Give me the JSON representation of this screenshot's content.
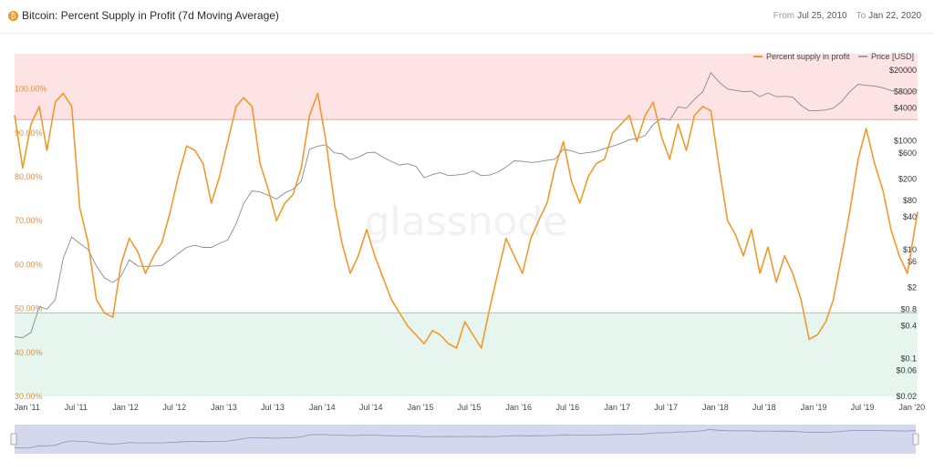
{
  "header": {
    "logo_glyph": "₿",
    "title": "Bitcoin: Percent Supply in Profit (7d Moving Average)",
    "from_label": "From",
    "from_value": "Jul 25, 2010",
    "to_label": "To",
    "to_value": "Jan 22, 2020"
  },
  "watermark": "glassnode",
  "colors": {
    "profit_line": "#f2992e",
    "price_line": "#8a8a8a",
    "upper_zone": "#fde3e3",
    "upper_line": "#f4a3a3",
    "lower_zone": "#e6f6ee",
    "lower_line": "#8fd3b0",
    "navigator_fill": "#d3d8ec"
  },
  "chart_data": {
    "type": "line",
    "x_range": [
      "2010-11-15",
      "2020-01-22"
    ],
    "x_ticks": [
      "Jan '11",
      "Jul '11",
      "Jan '12",
      "Jul '12",
      "Jan '13",
      "Jul '13",
      "Jan '14",
      "Jul '14",
      "Jan '15",
      "Jul '15",
      "Jan '16",
      "Jul '16",
      "Jan '17",
      "Jul '17",
      "Jan '18",
      "Jul '18",
      "Jan '19",
      "Jul '19",
      "Jan '20"
    ],
    "left_axis": {
      "ticks": [
        "100.00%",
        "90.00%",
        "80.00%",
        "70.00%",
        "60.00%",
        "50.00%",
        "40.00%",
        "30.00%"
      ],
      "ylim": [
        30,
        108
      ]
    },
    "right_axis": {
      "scale": "log",
      "ticks": [
        "$20000",
        "$8000",
        "$4000",
        "$1000",
        "$600",
        "$200",
        "$80",
        "$40",
        "$10",
        "$6",
        "$2",
        "$0.8",
        "$0.4",
        "$0.1",
        "$0.06",
        "$0.02"
      ],
      "ylim": [
        0.02,
        40000
      ]
    },
    "zones": [
      {
        "name": "upper",
        "from": 93,
        "to": 108
      },
      {
        "name": "lower",
        "from": 30,
        "to": 49
      }
    ],
    "legend_position": "top-right",
    "series": [
      {
        "name": "Percent supply in profit",
        "axis": "left",
        "points": [
          [
            "2010-11-15",
            94
          ],
          [
            "2010-12-15",
            82
          ],
          [
            "2011-01-15",
            92
          ],
          [
            "2011-02-15",
            96
          ],
          [
            "2011-03-15",
            86
          ],
          [
            "2011-04-15",
            97
          ],
          [
            "2011-05-15",
            99
          ],
          [
            "2011-06-15",
            96
          ],
          [
            "2011-07-15",
            73
          ],
          [
            "2011-08-15",
            65
          ],
          [
            "2011-09-15",
            52
          ],
          [
            "2011-10-15",
            49
          ],
          [
            "2011-11-15",
            48
          ],
          [
            "2011-12-15",
            60
          ],
          [
            "2012-01-15",
            66
          ],
          [
            "2012-02-15",
            63
          ],
          [
            "2012-03-15",
            58
          ],
          [
            "2012-04-15",
            62
          ],
          [
            "2012-05-15",
            65
          ],
          [
            "2012-06-15",
            72
          ],
          [
            "2012-07-15",
            80
          ],
          [
            "2012-08-15",
            87
          ],
          [
            "2012-09-15",
            86
          ],
          [
            "2012-10-15",
            83
          ],
          [
            "2012-11-15",
            74
          ],
          [
            "2012-12-15",
            80
          ],
          [
            "2013-01-15",
            88
          ],
          [
            "2013-02-15",
            96
          ],
          [
            "2013-03-15",
            98
          ],
          [
            "2013-04-15",
            96
          ],
          [
            "2013-05-15",
            83
          ],
          [
            "2013-06-15",
            77
          ],
          [
            "2013-07-15",
            70
          ],
          [
            "2013-08-15",
            74
          ],
          [
            "2013-09-15",
            76
          ],
          [
            "2013-10-15",
            82
          ],
          [
            "2013-11-15",
            94
          ],
          [
            "2013-12-15",
            99
          ],
          [
            "2014-01-15",
            88
          ],
          [
            "2014-02-15",
            74
          ],
          [
            "2014-03-15",
            65
          ],
          [
            "2014-04-15",
            58
          ],
          [
            "2014-05-15",
            62
          ],
          [
            "2014-06-15",
            68
          ],
          [
            "2014-07-15",
            62
          ],
          [
            "2014-08-15",
            57
          ],
          [
            "2014-09-15",
            52
          ],
          [
            "2014-10-15",
            49
          ],
          [
            "2014-11-15",
            46
          ],
          [
            "2014-12-15",
            44
          ],
          [
            "2015-01-15",
            42
          ],
          [
            "2015-02-15",
            45
          ],
          [
            "2015-03-15",
            44
          ],
          [
            "2015-04-15",
            42
          ],
          [
            "2015-05-15",
            41
          ],
          [
            "2015-06-15",
            47
          ],
          [
            "2015-07-15",
            44
          ],
          [
            "2015-08-15",
            41
          ],
          [
            "2015-09-15",
            50
          ],
          [
            "2015-10-15",
            58
          ],
          [
            "2015-11-15",
            66
          ],
          [
            "2015-12-15",
            62
          ],
          [
            "2016-01-15",
            58
          ],
          [
            "2016-02-15",
            66
          ],
          [
            "2016-03-15",
            70
          ],
          [
            "2016-04-15",
            74
          ],
          [
            "2016-05-15",
            82
          ],
          [
            "2016-06-15",
            88
          ],
          [
            "2016-07-15",
            79
          ],
          [
            "2016-08-15",
            74
          ],
          [
            "2016-09-15",
            80
          ],
          [
            "2016-10-15",
            83
          ],
          [
            "2016-11-15",
            84
          ],
          [
            "2016-12-15",
            90
          ],
          [
            "2017-01-15",
            92
          ],
          [
            "2017-02-15",
            94
          ],
          [
            "2017-03-15",
            88
          ],
          [
            "2017-04-15",
            94
          ],
          [
            "2017-05-15",
            97
          ],
          [
            "2017-06-15",
            89
          ],
          [
            "2017-07-15",
            84
          ],
          [
            "2017-08-15",
            92
          ],
          [
            "2017-09-15",
            86
          ],
          [
            "2017-10-15",
            94
          ],
          [
            "2017-11-15",
            96
          ],
          [
            "2017-12-15",
            95
          ],
          [
            "2018-01-15",
            82
          ],
          [
            "2018-02-15",
            70
          ],
          [
            "2018-03-15",
            67
          ],
          [
            "2018-04-15",
            62
          ],
          [
            "2018-05-15",
            68
          ],
          [
            "2018-06-15",
            58
          ],
          [
            "2018-07-15",
            64
          ],
          [
            "2018-08-15",
            56
          ],
          [
            "2018-09-15",
            62
          ],
          [
            "2018-10-15",
            58
          ],
          [
            "2018-11-15",
            52
          ],
          [
            "2018-12-15",
            43
          ],
          [
            "2019-01-15",
            44
          ],
          [
            "2019-02-15",
            47
          ],
          [
            "2019-03-15",
            52
          ],
          [
            "2019-04-15",
            62
          ],
          [
            "2019-05-15",
            72
          ],
          [
            "2019-06-15",
            84
          ],
          [
            "2019-07-15",
            91
          ],
          [
            "2019-08-15",
            83
          ],
          [
            "2019-09-15",
            77
          ],
          [
            "2019-10-15",
            68
          ],
          [
            "2019-11-15",
            62
          ],
          [
            "2019-12-15",
            58
          ],
          [
            "2020-01-22",
            72
          ]
        ]
      },
      {
        "name": "Price [USD]",
        "axis": "right",
        "points": [
          [
            "2010-11-15",
            0.25
          ],
          [
            "2010-12-15",
            0.24
          ],
          [
            "2011-01-15",
            0.3
          ],
          [
            "2011-02-15",
            0.9
          ],
          [
            "2011-03-15",
            0.8
          ],
          [
            "2011-04-15",
            1.2
          ],
          [
            "2011-05-15",
            7
          ],
          [
            "2011-06-15",
            17
          ],
          [
            "2011-07-15",
            13
          ],
          [
            "2011-08-15",
            10
          ],
          [
            "2011-09-15",
            5
          ],
          [
            "2011-10-15",
            3
          ],
          [
            "2011-11-15",
            2.5
          ],
          [
            "2011-12-15",
            3.2
          ],
          [
            "2012-01-15",
            6.5
          ],
          [
            "2012-02-15",
            5
          ],
          [
            "2012-03-15",
            4.9
          ],
          [
            "2012-04-15",
            5
          ],
          [
            "2012-05-15",
            5.1
          ],
          [
            "2012-06-15",
            6.5
          ],
          [
            "2012-07-15",
            8.5
          ],
          [
            "2012-08-15",
            11
          ],
          [
            "2012-09-15",
            12
          ],
          [
            "2012-10-15",
            11
          ],
          [
            "2012-11-15",
            11
          ],
          [
            "2012-12-15",
            13
          ],
          [
            "2013-01-15",
            15
          ],
          [
            "2013-02-15",
            30
          ],
          [
            "2013-03-15",
            70
          ],
          [
            "2013-04-15",
            120
          ],
          [
            "2013-05-15",
            115
          ],
          [
            "2013-06-15",
            100
          ],
          [
            "2013-07-15",
            85
          ],
          [
            "2013-08-15",
            110
          ],
          [
            "2013-09-15",
            130
          ],
          [
            "2013-10-15",
            180
          ],
          [
            "2013-11-15",
            700
          ],
          [
            "2013-12-15",
            800
          ],
          [
            "2014-01-15",
            850
          ],
          [
            "2014-02-15",
            600
          ],
          [
            "2014-03-15",
            580
          ],
          [
            "2014-04-15",
            450
          ],
          [
            "2014-05-15",
            500
          ],
          [
            "2014-06-15",
            600
          ],
          [
            "2014-07-15",
            620
          ],
          [
            "2014-08-15",
            500
          ],
          [
            "2014-09-15",
            420
          ],
          [
            "2014-10-15",
            360
          ],
          [
            "2014-11-15",
            380
          ],
          [
            "2014-12-15",
            340
          ],
          [
            "2015-01-15",
            210
          ],
          [
            "2015-02-15",
            240
          ],
          [
            "2015-03-15",
            260
          ],
          [
            "2015-04-15",
            230
          ],
          [
            "2015-05-15",
            235
          ],
          [
            "2015-06-15",
            245
          ],
          [
            "2015-07-15",
            280
          ],
          [
            "2015-08-15",
            230
          ],
          [
            "2015-09-15",
            235
          ],
          [
            "2015-10-15",
            265
          ],
          [
            "2015-11-15",
            330
          ],
          [
            "2015-12-15",
            430
          ],
          [
            "2016-01-15",
            420
          ],
          [
            "2016-02-15",
            400
          ],
          [
            "2016-03-15",
            415
          ],
          [
            "2016-04-15",
            440
          ],
          [
            "2016-05-15",
            460
          ],
          [
            "2016-06-15",
            700
          ],
          [
            "2016-07-15",
            660
          ],
          [
            "2016-08-15",
            580
          ],
          [
            "2016-09-15",
            610
          ],
          [
            "2016-10-15",
            640
          ],
          [
            "2016-11-15",
            720
          ],
          [
            "2016-12-15",
            800
          ],
          [
            "2017-01-15",
            900
          ],
          [
            "2017-02-15",
            1050
          ],
          [
            "2017-03-15",
            1100
          ],
          [
            "2017-04-15",
            1250
          ],
          [
            "2017-05-15",
            2000
          ],
          [
            "2017-06-15",
            2600
          ],
          [
            "2017-07-15",
            2400
          ],
          [
            "2017-08-15",
            4200
          ],
          [
            "2017-09-15",
            4000
          ],
          [
            "2017-10-15",
            5800
          ],
          [
            "2017-11-15",
            8000
          ],
          [
            "2017-12-15",
            18000
          ],
          [
            "2018-01-15",
            12000
          ],
          [
            "2018-02-15",
            9000
          ],
          [
            "2018-03-15",
            8500
          ],
          [
            "2018-04-15",
            8000
          ],
          [
            "2018-05-15",
            8200
          ],
          [
            "2018-06-15",
            6500
          ],
          [
            "2018-07-15",
            7600
          ],
          [
            "2018-08-15",
            6500
          ],
          [
            "2018-09-15",
            6600
          ],
          [
            "2018-10-15",
            6400
          ],
          [
            "2018-11-15",
            4500
          ],
          [
            "2018-12-15",
            3600
          ],
          [
            "2019-01-15",
            3600
          ],
          [
            "2019-02-15",
            3700
          ],
          [
            "2019-03-15",
            4000
          ],
          [
            "2019-04-15",
            5300
          ],
          [
            "2019-05-15",
            8000
          ],
          [
            "2019-06-15",
            11000
          ],
          [
            "2019-07-15",
            10500
          ],
          [
            "2019-08-15",
            10200
          ],
          [
            "2019-09-15",
            9500
          ],
          [
            "2019-10-15",
            8400
          ],
          [
            "2019-11-15",
            8000
          ],
          [
            "2019-12-15",
            7200
          ],
          [
            "2020-01-22",
            8700
          ]
        ]
      }
    ]
  }
}
